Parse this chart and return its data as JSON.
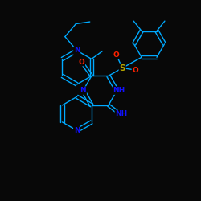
{
  "bg_color": "#080808",
  "bond_color": "#00aaff",
  "N_color": "#1111ff",
  "O_color": "#ff2200",
  "S_color": "#bbaa00",
  "lw": 1.0,
  "fs": 6.5,
  "xlim": [
    0,
    10
  ],
  "ylim": [
    0,
    10
  ]
}
